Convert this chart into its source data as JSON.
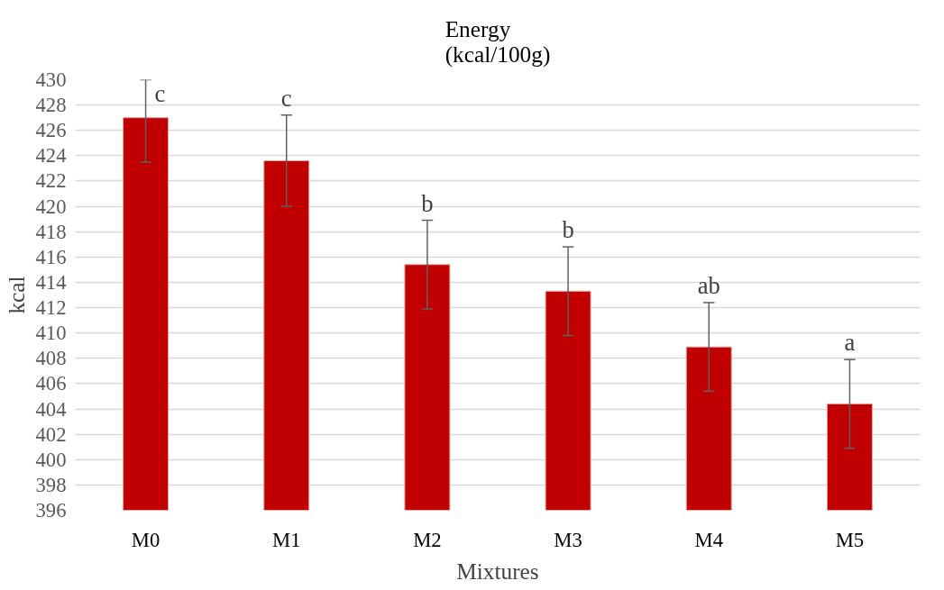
{
  "chart_data": {
    "type": "bar",
    "title": "Energy\n(kcal/100g)",
    "xlabel": "Mixtures",
    "ylabel": "kcal",
    "categories": [
      "M0",
      "M1",
      "M2",
      "M3",
      "M4",
      "M5"
    ],
    "values": [
      427.0,
      423.6,
      415.4,
      413.3,
      408.9,
      404.4
    ],
    "errors": [
      [
        423.5,
        430.0
      ],
      3.6,
      3.5,
      3.5,
      3.5,
      3.5
    ],
    "color": "#c00000",
    "ylim": [
      396,
      430
    ],
    "yticks": [
      396,
      398,
      400,
      402,
      404,
      406,
      408,
      410,
      412,
      414,
      416,
      418,
      420,
      422,
      424,
      426,
      428,
      430
    ],
    "grid": "y",
    "annotations": [
      {
        "text": "c",
        "x": "M0",
        "y": 430.0
      },
      {
        "text": "c",
        "x": "M1",
        "y": 427.2
      },
      {
        "text": "b",
        "x": "M2",
        "y": 418.9
      },
      {
        "text": "b",
        "x": "M3",
        "y": 416.8
      },
      {
        "text": "ab",
        "x": "M4",
        "y": 412.4
      },
      {
        "text": "a",
        "x": "M5",
        "y": 407.9
      }
    ]
  }
}
